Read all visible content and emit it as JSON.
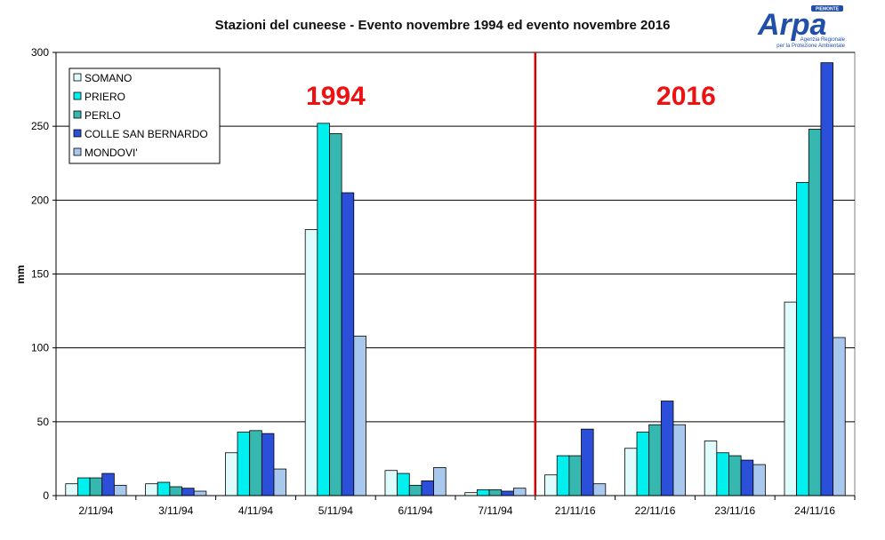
{
  "logo": {
    "text": "Arpa",
    "region": "PIEMONTE",
    "subtitle1": "Agenzia Regionale",
    "subtitle2": "per la Protezione Ambientale"
  },
  "chart_data": {
    "type": "bar",
    "title": "Stazioni del cuneese - Evento novembre 1994 ed evento novembre 2016",
    "xlabel": "",
    "ylabel": "mm",
    "ylim": [
      0,
      300
    ],
    "yticks": [
      0,
      50,
      100,
      150,
      200,
      250,
      300
    ],
    "grid": true,
    "legend_position": "top-left",
    "categories": [
      "2/11/94",
      "3/11/94",
      "4/11/94",
      "5/11/94",
      "6/11/94",
      "7/11/94",
      "21/11/16",
      "22/11/16",
      "23/11/16",
      "24/11/16"
    ],
    "series": [
      {
        "name": "SOMANO",
        "color": "#e0fbfb",
        "values": [
          8,
          8,
          29,
          180,
          17,
          2,
          14,
          32,
          37,
          131
        ]
      },
      {
        "name": "PRIERO",
        "color": "#00f0f0",
        "values": [
          12,
          9,
          43,
          252,
          15,
          4,
          27,
          43,
          29,
          212
        ]
      },
      {
        "name": "PERLO",
        "color": "#36b8b0",
        "values": [
          12,
          6,
          44,
          245,
          7,
          4,
          27,
          48,
          27,
          248
        ]
      },
      {
        "name": "COLLE SAN BERNARDO",
        "color": "#2b4fd9",
        "values": [
          15,
          5,
          42,
          205,
          10,
          3,
          45,
          64,
          24,
          293
        ]
      },
      {
        "name": "MONDOVI'",
        "color": "#a8c8ee",
        "values": [
          7,
          3,
          18,
          108,
          19,
          5,
          8,
          48,
          21,
          107
        ]
      }
    ],
    "annotations": [
      {
        "text": "1994",
        "color": "#ee1111"
      },
      {
        "text": "2016",
        "color": "#ee1111"
      }
    ],
    "separator_after_category": 5,
    "separator_color": "#dd0000"
  }
}
